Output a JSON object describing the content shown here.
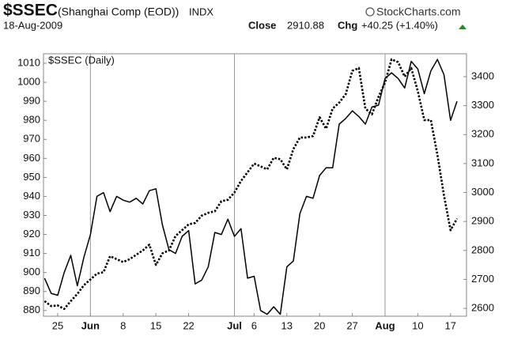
{
  "header": {
    "title": "$SSEC",
    "subtitle": "(Shanghai Comp (EOD))",
    "exchange": "INDX",
    "watermark": "StockCharts.com",
    "date": "18-Aug-2009",
    "close_label": "Close",
    "close": "2910.88",
    "chg_label": "Chg",
    "chg": "+40.25 (+1.40%)"
  },
  "chart_data": {
    "type": "line",
    "categories": [
      null,
      null,
      "25",
      null,
      null,
      null,
      null,
      "Jun",
      null,
      null,
      null,
      null,
      "8",
      null,
      null,
      null,
      null,
      "15",
      null,
      null,
      null,
      null,
      "22",
      null,
      null,
      null,
      null,
      null,
      null,
      "Jul",
      null,
      null,
      "6",
      null,
      null,
      null,
      null,
      "13",
      null,
      null,
      null,
      null,
      "20",
      null,
      null,
      null,
      null,
      "27",
      null,
      null,
      null,
      null,
      "Aug",
      null,
      null,
      null,
      null,
      "10",
      null,
      null,
      null,
      null,
      "17",
      null
    ],
    "series": [
      {
        "color": "#000000",
        "style": "solid",
        "axis": "y",
        "values": [
          897,
          889,
          888,
          900,
          909,
          893,
          908,
          920,
          940,
          942,
          932,
          940,
          938,
          937,
          939,
          936,
          943,
          944,
          925,
          912,
          910,
          919,
          922,
          894,
          896,
          903,
          921,
          920,
          928,
          919,
          923,
          897,
          898,
          880,
          878,
          882,
          878,
          903,
          906,
          931,
          940,
          939,
          951,
          955,
          955,
          978,
          981,
          985,
          982,
          978,
          987,
          988,
          1002,
          1005,
          1002,
          997,
          1011,
          1007,
          994,
          1006,
          1012,
          1004,
          980,
          990
        ]
      },
      {
        "name": "$SSEC (Daily)",
        "color": "#000000",
        "style": "dotted",
        "axis": "y2",
        "values": [
          2625,
          2608,
          2610,
          2598,
          2625,
          2650,
          2680,
          2700,
          2720,
          2725,
          2780,
          2770,
          2760,
          2770,
          2785,
          2800,
          2820,
          2750,
          2790,
          2800,
          2850,
          2870,
          2890,
          2895,
          2920,
          2930,
          2935,
          2970,
          2975,
          3000,
          3040,
          3070,
          3100,
          3090,
          3080,
          3120,
          3115,
          3080,
          3150,
          3190,
          3190,
          3195,
          3260,
          3220,
          3290,
          3310,
          3340,
          3420,
          3430,
          3290,
          3270,
          3330,
          3380,
          3460,
          3450,
          3400,
          3430,
          3350,
          3250,
          3250,
          3130,
          2990,
          2870,
          2910
        ]
      }
    ],
    "ylim": [
      877,
      1015
    ],
    "yticks": [
      880,
      890,
      900,
      910,
      920,
      930,
      940,
      950,
      960,
      970,
      980,
      990,
      1000,
      1010
    ],
    "y2lim": [
      2573,
      3479
    ],
    "y2ticks": [
      2600,
      2700,
      2800,
      2900,
      3000,
      3100,
      3200,
      3300,
      3400
    ],
    "legend": "top-left"
  }
}
